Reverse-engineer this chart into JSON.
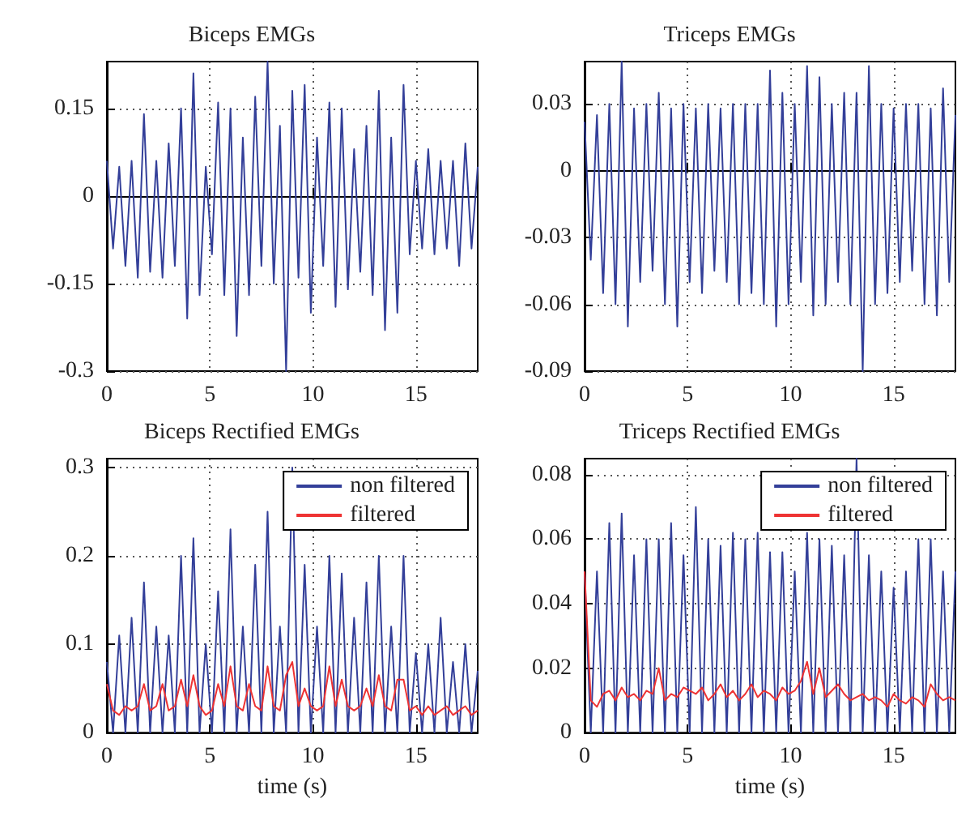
{
  "chart_data": [
    {
      "type": "line",
      "title": "Biceps EMGs",
      "xlim": [
        0,
        18
      ],
      "xticks": [
        0,
        5,
        10,
        15
      ],
      "ylim": [
        -0.3,
        0.23
      ],
      "yticks": [
        -0.3,
        -0.15,
        0,
        0.15
      ],
      "grid": true,
      "line_style": "solid",
      "x": [
        0,
        0.3,
        0.6,
        0.9,
        1.2,
        1.5,
        1.8,
        2.1,
        2.4,
        2.7,
        3.0,
        3.3,
        3.6,
        3.9,
        4.2,
        4.5,
        4.8,
        5.1,
        5.4,
        5.7,
        6.0,
        6.3,
        6.6,
        6.9,
        7.2,
        7.5,
        7.8,
        8.1,
        8.4,
        8.7,
        9.0,
        9.3,
        9.6,
        9.9,
        10.2,
        10.5,
        10.8,
        11.1,
        11.4,
        11.7,
        12.0,
        12.3,
        12.6,
        12.9,
        13.2,
        13.5,
        13.8,
        14.1,
        14.4,
        14.7,
        15.0,
        15.3,
        15.6,
        15.9,
        16.2,
        16.5,
        16.8,
        17.1,
        17.4,
        17.7,
        18.0
      ],
      "series": [
        {
          "color": "#333f99",
          "values": [
            0.06,
            -0.09,
            0.05,
            -0.12,
            0.06,
            -0.14,
            0.14,
            -0.13,
            0.06,
            -0.14,
            0.09,
            -0.12,
            0.15,
            -0.21,
            0.21,
            -0.17,
            0.05,
            -0.1,
            0.16,
            -0.17,
            0.15,
            -0.24,
            0.1,
            -0.17,
            0.17,
            -0.12,
            0.23,
            -0.15,
            0.12,
            -0.3,
            0.18,
            -0.14,
            0.19,
            -0.2,
            0.1,
            -0.12,
            0.16,
            -0.19,
            0.15,
            -0.16,
            0.08,
            -0.13,
            0.12,
            -0.17,
            0.18,
            -0.23,
            0.1,
            -0.2,
            0.19,
            -0.1,
            0.06,
            -0.09,
            0.08,
            -0.1,
            0.06,
            -0.09,
            0.06,
            -0.12,
            0.09,
            -0.09,
            0.05
          ]
        }
      ]
    },
    {
      "type": "line",
      "title": "Triceps EMGs",
      "xlim": [
        0,
        18
      ],
      "xticks": [
        0,
        5,
        10,
        15
      ],
      "ylim": [
        -0.09,
        0.049
      ],
      "yticks": [
        -0.09,
        -0.06,
        -0.03,
        0,
        0.03
      ],
      "grid": true,
      "line_style": "solid",
      "x": [
        0,
        0.3,
        0.6,
        0.9,
        1.2,
        1.5,
        1.8,
        2.1,
        2.4,
        2.7,
        3.0,
        3.3,
        3.6,
        3.9,
        4.2,
        4.5,
        4.8,
        5.1,
        5.4,
        5.7,
        6.0,
        6.3,
        6.6,
        6.9,
        7.2,
        7.5,
        7.8,
        8.1,
        8.4,
        8.7,
        9.0,
        9.3,
        9.6,
        9.9,
        10.2,
        10.5,
        10.8,
        11.1,
        11.4,
        11.7,
        12.0,
        12.3,
        12.6,
        12.9,
        13.2,
        13.5,
        13.8,
        14.1,
        14.4,
        14.7,
        15.0,
        15.3,
        15.6,
        15.9,
        16.2,
        16.5,
        16.8,
        17.1,
        17.4,
        17.7,
        18.0
      ],
      "series": [
        {
          "color": "#333f99",
          "values": [
            0.022,
            -0.04,
            0.025,
            -0.055,
            0.03,
            -0.06,
            0.049,
            -0.07,
            0.028,
            -0.05,
            0.03,
            -0.045,
            0.035,
            -0.06,
            0.028,
            -0.07,
            0.03,
            -0.05,
            0.028,
            -0.055,
            0.03,
            -0.045,
            0.028,
            -0.05,
            0.03,
            -0.06,
            0.03,
            -0.055,
            0.03,
            -0.06,
            0.045,
            -0.07,
            0.035,
            -0.06,
            0.03,
            -0.05,
            0.047,
            -0.065,
            0.042,
            -0.06,
            0.03,
            -0.05,
            0.035,
            -0.06,
            0.035,
            -0.09,
            0.047,
            -0.06,
            0.03,
            -0.055,
            0.028,
            -0.05,
            0.03,
            -0.045,
            0.03,
            -0.06,
            0.028,
            -0.065,
            0.037,
            -0.05,
            0.025
          ]
        }
      ]
    },
    {
      "type": "line",
      "title": "Biceps Rectified EMGs",
      "xlabel": "time (s)",
      "xlim": [
        0,
        18
      ],
      "xticks": [
        0,
        5,
        10,
        15
      ],
      "ylim": [
        0,
        0.31
      ],
      "yticks": [
        0,
        0.1,
        0.2,
        0.3
      ],
      "grid": true,
      "legend": "top right",
      "line_style": "solid",
      "x": [
        0,
        0.3,
        0.6,
        0.9,
        1.2,
        1.5,
        1.8,
        2.1,
        2.4,
        2.7,
        3.0,
        3.3,
        3.6,
        3.9,
        4.2,
        4.5,
        4.8,
        5.1,
        5.4,
        5.7,
        6.0,
        6.3,
        6.6,
        6.9,
        7.2,
        7.5,
        7.8,
        8.1,
        8.4,
        8.7,
        9.0,
        9.3,
        9.6,
        9.9,
        10.2,
        10.5,
        10.8,
        11.1,
        11.4,
        11.7,
        12.0,
        12.3,
        12.6,
        12.9,
        13.2,
        13.5,
        13.8,
        14.1,
        14.4,
        14.7,
        15.0,
        15.3,
        15.6,
        15.9,
        16.2,
        16.5,
        16.8,
        17.1,
        17.4,
        17.7,
        18.0
      ],
      "series": [
        {
          "name": "non filtered",
          "color": "#333f99",
          "values": [
            0.08,
            0,
            0.11,
            0,
            0.13,
            0,
            0.17,
            0,
            0.12,
            0,
            0.11,
            0,
            0.2,
            0,
            0.22,
            0,
            0.1,
            0,
            0.16,
            0,
            0.23,
            0,
            0.12,
            0,
            0.19,
            0,
            0.25,
            0,
            0.12,
            0,
            0.3,
            0,
            0.19,
            0,
            0.12,
            0,
            0.2,
            0,
            0.18,
            0,
            0.13,
            0,
            0.17,
            0,
            0.2,
            0,
            0.12,
            0,
            0.2,
            0,
            0.09,
            0,
            0.1,
            0,
            0.13,
            0,
            0.08,
            0,
            0.1,
            0,
            0.07
          ]
        },
        {
          "name": "filtered",
          "color": "#ee3333",
          "values": [
            0.055,
            0.025,
            0.02,
            0.03,
            0.025,
            0.03,
            0.055,
            0.025,
            0.03,
            0.055,
            0.025,
            0.03,
            0.06,
            0.03,
            0.065,
            0.03,
            0.02,
            0.025,
            0.055,
            0.03,
            0.075,
            0.03,
            0.025,
            0.055,
            0.03,
            0.025,
            0.075,
            0.03,
            0.025,
            0.065,
            0.08,
            0.03,
            0.05,
            0.03,
            0.025,
            0.03,
            0.075,
            0.03,
            0.06,
            0.03,
            0.025,
            0.03,
            0.05,
            0.03,
            0.065,
            0.03,
            0.025,
            0.06,
            0.06,
            0.025,
            0.03,
            0.02,
            0.03,
            0.02,
            0.025,
            0.03,
            0.02,
            0.025,
            0.03,
            0.02,
            0.025
          ]
        }
      ]
    },
    {
      "type": "line",
      "title": "Triceps Rectified EMGs",
      "xlabel": "time (s)",
      "xlim": [
        0,
        18
      ],
      "xticks": [
        0,
        5,
        10,
        15
      ],
      "ylim": [
        0,
        0.085
      ],
      "yticks": [
        0,
        0.02,
        0.04,
        0.06,
        0.08
      ],
      "grid": true,
      "legend": "top right",
      "line_style": "solid",
      "x": [
        0,
        0.3,
        0.6,
        0.9,
        1.2,
        1.5,
        1.8,
        2.1,
        2.4,
        2.7,
        3.0,
        3.3,
        3.6,
        3.9,
        4.2,
        4.5,
        4.8,
        5.1,
        5.4,
        5.7,
        6.0,
        6.3,
        6.6,
        6.9,
        7.2,
        7.5,
        7.8,
        8.1,
        8.4,
        8.7,
        9.0,
        9.3,
        9.6,
        9.9,
        10.2,
        10.5,
        10.8,
        11.1,
        11.4,
        11.7,
        12.0,
        12.3,
        12.6,
        12.9,
        13.2,
        13.5,
        13.8,
        14.1,
        14.4,
        14.7,
        15.0,
        15.3,
        15.6,
        15.9,
        16.2,
        16.5,
        16.8,
        17.1,
        17.4,
        17.7,
        18.0
      ],
      "series": [
        {
          "name": "non filtered",
          "color": "#333f99",
          "values": [
            0.05,
            0,
            0.05,
            0,
            0.065,
            0,
            0.068,
            0,
            0.055,
            0,
            0.06,
            0,
            0.06,
            0,
            0.065,
            0,
            0.055,
            0,
            0.07,
            0,
            0.06,
            0,
            0.058,
            0,
            0.062,
            0,
            0.06,
            0,
            0.062,
            0,
            0.056,
            0,
            0.056,
            0,
            0.05,
            0,
            0.062,
            0,
            0.06,
            0,
            0.058,
            0,
            0.055,
            0,
            0.085,
            0,
            0.055,
            0,
            0.05,
            0,
            0.045,
            0,
            0.05,
            0,
            0.06,
            0,
            0.06,
            0,
            0.05,
            0,
            0.05
          ]
        },
        {
          "name": "filtered",
          "color": "#ee3333",
          "values": [
            0.05,
            0.01,
            0.008,
            0.012,
            0.013,
            0.01,
            0.014,
            0.011,
            0.012,
            0.01,
            0.013,
            0.012,
            0.02,
            0.01,
            0.012,
            0.011,
            0.014,
            0.013,
            0.012,
            0.014,
            0.01,
            0.012,
            0.015,
            0.011,
            0.013,
            0.01,
            0.012,
            0.015,
            0.011,
            0.013,
            0.012,
            0.01,
            0.014,
            0.012,
            0.013,
            0.016,
            0.022,
            0.012,
            0.02,
            0.011,
            0.013,
            0.015,
            0.012,
            0.01,
            0.011,
            0.012,
            0.01,
            0.011,
            0.01,
            0.008,
            0.012,
            0.01,
            0.009,
            0.011,
            0.01,
            0.008,
            0.015,
            0.012,
            0.01,
            0.011,
            0.01
          ]
        }
      ]
    }
  ]
}
